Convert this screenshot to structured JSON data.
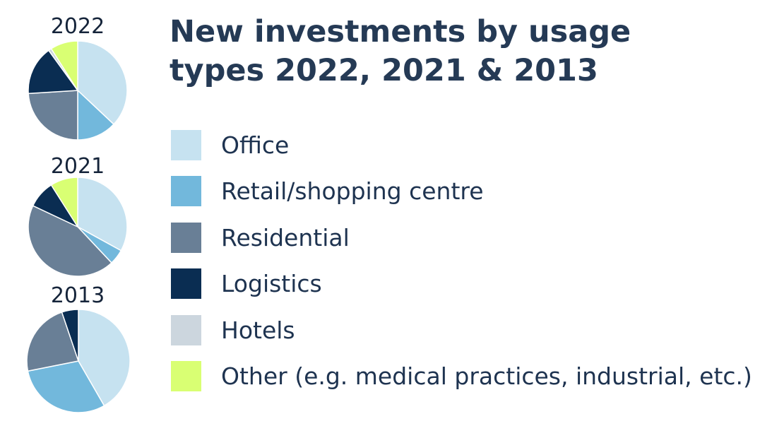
{
  "title": "New investments by usage types 2022, 2021 & 2013",
  "legend": [
    {
      "key": "office",
      "label": "Office",
      "color": "#c6e2f0"
    },
    {
      "key": "retail",
      "label": "Retail/shopping centre",
      "color": "#72b8dc"
    },
    {
      "key": "residential",
      "label": "Residential",
      "color": "#697f96"
    },
    {
      "key": "logistics",
      "label": "Logistics",
      "color": "#0a2d52"
    },
    {
      "key": "hotels",
      "label": "Hotels",
      "color": "#ccd6de"
    },
    {
      "key": "other",
      "label": "Other (e.g. medical practices, industrial, etc.)",
      "color": "#d9ff73"
    }
  ],
  "chart_data": [
    {
      "type": "pie",
      "title": "2022",
      "series": [
        {
          "name": "Office",
          "value": 37
        },
        {
          "name": "Retail/shopping centre",
          "value": 13
        },
        {
          "name": "Residential",
          "value": 24
        },
        {
          "name": "Logistics",
          "value": 16
        },
        {
          "name": "Hotels",
          "value": 1
        },
        {
          "name": "Other (e.g. medical practices, industrial, etc.)",
          "value": 9
        }
      ]
    },
    {
      "type": "pie",
      "title": "2021",
      "series": [
        {
          "name": "Office",
          "value": 33
        },
        {
          "name": "Retail/shopping centre",
          "value": 5
        },
        {
          "name": "Residential",
          "value": 44
        },
        {
          "name": "Logistics",
          "value": 9
        },
        {
          "name": "Hotels",
          "value": 0
        },
        {
          "name": "Other (e.g. medical practices, industrial, etc.)",
          "value": 9
        }
      ]
    },
    {
      "type": "pie",
      "title": "2013",
      "series": [
        {
          "name": "Office",
          "value": 40
        },
        {
          "name": "Retail/shopping centre",
          "value": 29
        },
        {
          "name": "Residential",
          "value": 22
        },
        {
          "name": "Logistics",
          "value": 5
        },
        {
          "name": "Hotels",
          "value": 0
        },
        {
          "name": "Other (e.g. medical practices, industrial, etc.)",
          "value": 0
        }
      ]
    }
  ]
}
